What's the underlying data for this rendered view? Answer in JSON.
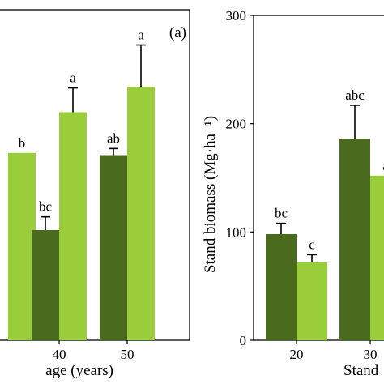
{
  "colors": {
    "dark": "#4a6b1e",
    "light": "#9acd3c",
    "axis": "#000000",
    "bg": "#ffffff"
  },
  "chart_data": [
    {
      "type": "bar",
      "panel_label": "(a)",
      "xlabel": "age (years)",
      "ylabel": "",
      "categories": [
        "",
        "40",
        "50"
      ],
      "ylim": [
        0,
        300
      ],
      "grid": false,
      "series": [
        {
          "values": [
            null,
            100,
            168
          ],
          "errors": [
            null,
            12,
            6
          ],
          "letters": [
            null,
            "bc",
            "ab"
          ]
        },
        {
          "values": [
            170,
            207,
            230
          ],
          "errors": [
            null,
            22,
            38
          ],
          "letters": [
            "b",
            "a",
            "a"
          ]
        }
      ]
    },
    {
      "type": "bar",
      "xlabel": "Stand",
      "ylabel": "Stand biomass (Mg·ha⁻¹)",
      "categories": [
        "20",
        "30"
      ],
      "ylim": [
        0,
        300
      ],
      "yticks": [
        "0",
        "100",
        "200",
        "300"
      ],
      "grid": false,
      "series": [
        {
          "values": [
            98,
            186
          ],
          "errors": [
            10,
            31
          ],
          "letters": [
            "bc",
            "abc"
          ]
        },
        {
          "values": [
            72,
            152
          ],
          "errors": [
            7,
            null
          ],
          "letters": [
            "c",
            "a"
          ]
        }
      ]
    }
  ]
}
